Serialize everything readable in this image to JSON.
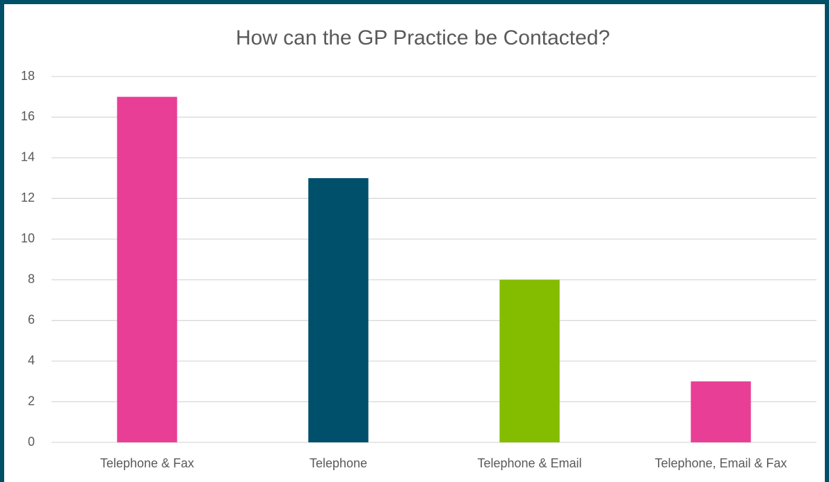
{
  "chart_data": {
    "type": "bar",
    "title": "How can the GP Practice be Contacted?",
    "categories": [
      "Telephone & Fax",
      "Telephone",
      "Telephone & Email",
      "Telephone, Email & Fax"
    ],
    "values": [
      17,
      13,
      8,
      3
    ],
    "colors": [
      "#e83e96",
      "#004f6b",
      "#84bc00",
      "#e83e96"
    ],
    "ylim": [
      0,
      18
    ],
    "yticks": [
      0,
      2,
      4,
      6,
      8,
      10,
      12,
      14,
      16,
      18
    ],
    "grid": true
  }
}
